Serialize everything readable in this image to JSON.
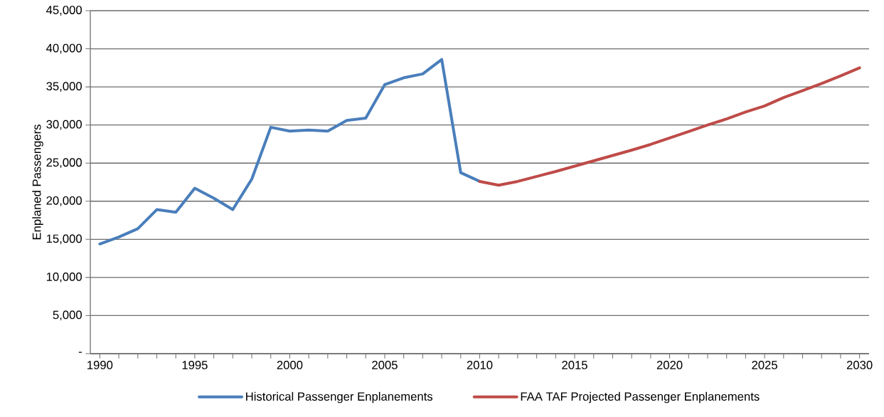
{
  "chart_data": {
    "type": "line",
    "ylabel": "Enplaned Passengers",
    "series": [
      {
        "name": "Historical Passenger Enplanements",
        "color": "#4a7ebb",
        "x": [
          1990,
          1991,
          1992,
          1993,
          1994,
          1995,
          1996,
          1997,
          1998,
          1999,
          2000,
          2001,
          2002,
          2003,
          2004,
          2005,
          2006,
          2007,
          2008,
          2009,
          2010
        ],
        "values": [
          14400,
          15300,
          16400,
          18900,
          18550,
          21700,
          20400,
          18900,
          22900,
          29700,
          29200,
          29350,
          29200,
          30600,
          30900,
          35300,
          36200,
          36700,
          38600,
          23750,
          22600
        ]
      },
      {
        "name": "FAA TAF Projected Passenger Enplanements",
        "color": "#be4b48",
        "x": [
          2010,
          2011,
          2012,
          2013,
          2014,
          2015,
          2016,
          2017,
          2018,
          2019,
          2020,
          2021,
          2022,
          2023,
          2024,
          2025,
          2026,
          2027,
          2028,
          2029,
          2030
        ],
        "values": [
          22600,
          22100,
          22600,
          23250,
          23900,
          24600,
          25300,
          26000,
          26700,
          27450,
          28300,
          29150,
          30000,
          30800,
          31700,
          32500,
          33600,
          34500,
          35450,
          36450,
          37500
        ]
      }
    ],
    "xlim": [
      1989.5,
      2030.5
    ],
    "ylim": [
      0,
      45000
    ],
    "xticks": [
      1990,
      {
        "value": 1991,
        "label": null
      },
      {
        "value": 1992,
        "label": null
      },
      {
        "value": 1993,
        "label": null
      },
      {
        "value": 1994,
        "label": null
      },
      1995,
      {
        "value": 1996,
        "label": null
      },
      {
        "value": 1997,
        "label": null
      },
      {
        "value": 1998,
        "label": null
      },
      {
        "value": 1999,
        "label": null
      },
      2000,
      {
        "value": 2001,
        "label": null
      },
      {
        "value": 2002,
        "label": null
      },
      {
        "value": 2003,
        "label": null
      },
      {
        "value": 2004,
        "label": null
      },
      2005,
      {
        "value": 2006,
        "label": null
      },
      {
        "value": 2007,
        "label": null
      },
      {
        "value": 2008,
        "label": null
      },
      {
        "value": 2009,
        "label": null
      },
      2010,
      {
        "value": 2011,
        "label": null
      },
      {
        "value": 2012,
        "label": null
      },
      {
        "value": 2013,
        "label": null
      },
      {
        "value": 2014,
        "label": null
      },
      2015,
      {
        "value": 2016,
        "label": null
      },
      {
        "value": 2017,
        "label": null
      },
      {
        "value": 2018,
        "label": null
      },
      {
        "value": 2019,
        "label": null
      },
      2020,
      {
        "value": 2021,
        "label": null
      },
      {
        "value": 2022,
        "label": null
      },
      {
        "value": 2023,
        "label": null
      },
      {
        "value": 2024,
        "label": null
      },
      2025,
      {
        "value": 2026,
        "label": null
      },
      {
        "value": 2027,
        "label": null
      },
      {
        "value": 2028,
        "label": null
      },
      {
        "value": 2029,
        "label": null
      },
      2030
    ],
    "yticks": [
      {
        "value": 0,
        "label": "-"
      },
      {
        "value": 5000,
        "label": "5,000"
      },
      {
        "value": 10000,
        "label": "10,000"
      },
      {
        "value": 15000,
        "label": "15,000"
      },
      {
        "value": 20000,
        "label": "20,000"
      },
      {
        "value": 25000,
        "label": "25,000"
      },
      {
        "value": 30000,
        "label": "30,000"
      },
      {
        "value": 35000,
        "label": "35,000"
      },
      {
        "value": 40000,
        "label": "40,000"
      },
      {
        "value": 45000,
        "label": "45,000"
      }
    ],
    "grid": "y",
    "legend": "bottom",
    "marker": "none",
    "line_style": "solid"
  }
}
